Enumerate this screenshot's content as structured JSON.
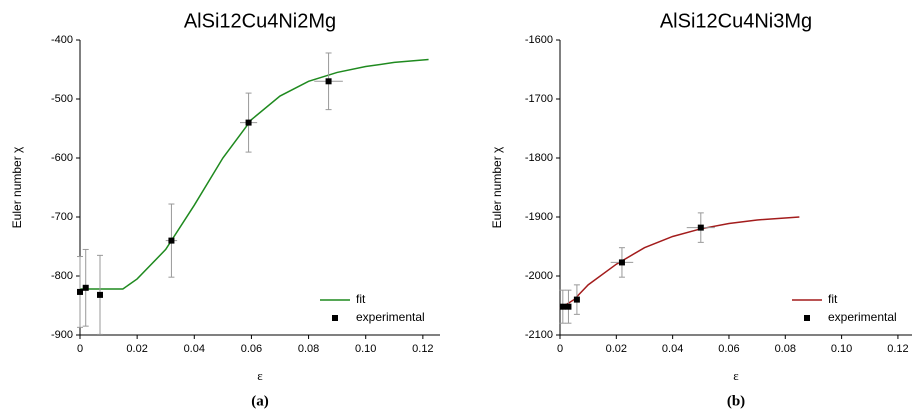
{
  "chart_data": [
    {
      "type": "line",
      "title": "AlSi12Cu4Ni2Mg",
      "x_label": "ε",
      "y_label": "Euler number χ",
      "caption": "(a)",
      "xlim": [
        0,
        0.126
      ],
      "ylim": [
        -900,
        -400
      ],
      "xticks": [
        0,
        0.02,
        0.04,
        0.06,
        0.08,
        {
          "value": 0.1,
          "label": "0.10"
        },
        0.12
      ],
      "yticks": [
        -900,
        -800,
        -700,
        -600,
        -500,
        -400
      ],
      "legend": "lower right",
      "series": [
        {
          "name": "fit",
          "color": "#1f8a1f",
          "x": [
            0,
            0.015,
            0.02,
            0.03,
            0.04,
            0.05,
            0.06,
            0.07,
            0.08,
            0.09,
            0.1,
            0.11,
            0.122
          ],
          "values": [
            -822,
            -822,
            -805,
            -755,
            -680,
            -600,
            -535,
            -495,
            -470,
            -455,
            -445,
            -438,
            -433
          ]
        },
        {
          "name": "experimental",
          "color": "#000000",
          "x": [
            0,
            0.002,
            0.007,
            0.032,
            0.059,
            0.087
          ],
          "values": [
            -827,
            -820,
            -832,
            -740,
            -540,
            -470
          ],
          "yerr": [
            60,
            65,
            67,
            62,
            50,
            48
          ],
          "xerr": [
            0.001,
            0.001,
            0.001,
            0.002,
            0.003,
            0.005
          ]
        }
      ]
    },
    {
      "type": "line",
      "title": "AlSi12Cu4Ni3Mg",
      "x_label": "ε",
      "y_label": "Euler number χ",
      "caption": "(b)",
      "xlim": [
        0,
        0.125
      ],
      "ylim": [
        -2100,
        -1600
      ],
      "xticks": [
        0,
        0.02,
        0.04,
        0.06,
        0.08,
        {
          "value": 0.1,
          "label": "0.10"
        },
        0.12
      ],
      "yticks": [
        -2100,
        -2000,
        -1900,
        -1800,
        -1700,
        -1600
      ],
      "legend": "lower right",
      "series": [
        {
          "name": "fit",
          "color": "#a31c1c",
          "x": [
            0,
            0.005,
            0.01,
            0.02,
            0.03,
            0.04,
            0.05,
            0.06,
            0.07,
            0.085
          ],
          "values": [
            -2055,
            -2040,
            -2015,
            -1980,
            -1952,
            -1933,
            -1920,
            -1911,
            -1905,
            -1900
          ]
        },
        {
          "name": "experimental",
          "color": "#000000",
          "x": [
            0.001,
            0.003,
            0.006,
            0.022,
            0.05
          ],
          "values": [
            -2052,
            -2052,
            -2040,
            -1977,
            -1918
          ],
          "yerr": [
            28,
            28,
            25,
            25,
            25
          ],
          "xerr": [
            0.001,
            0.001,
            0.001,
            0.004,
            0.005
          ]
        }
      ]
    }
  ]
}
